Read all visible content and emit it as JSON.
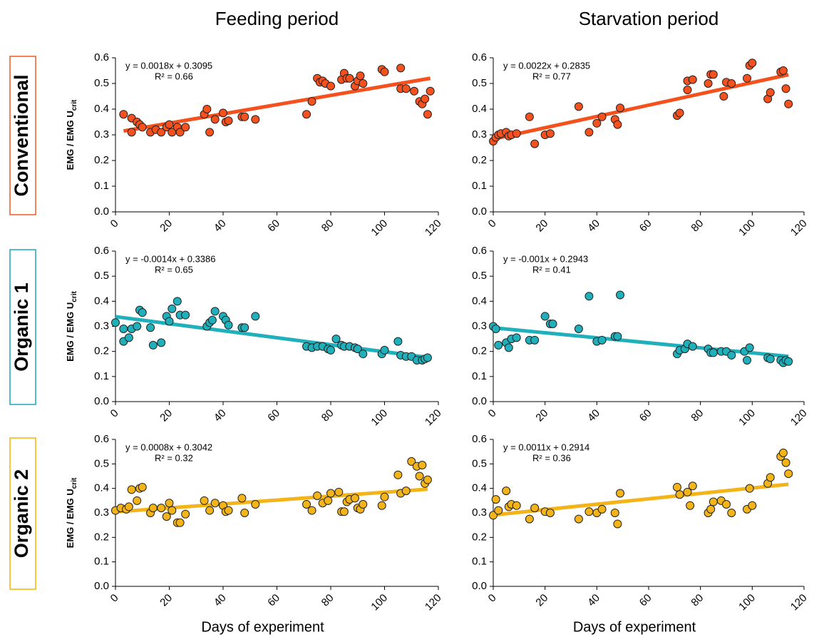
{
  "column_titles": [
    "Feeding period",
    "Starvation period"
  ],
  "row_labels": [
    {
      "text": "Conventional",
      "color": "#f15a22"
    },
    {
      "text": "Organic 1",
      "color": "#1aa9b8"
    },
    {
      "text": "Organic 2",
      "color": "#f5b400"
    }
  ],
  "chart_data": [
    {
      "type": "scatter",
      "color": "#f4511e",
      "line_color": "#f4511e",
      "ylabel": {
        "text": "EMG / EMG U",
        "subscript": "crit"
      },
      "x": [
        3,
        6,
        6,
        8,
        9,
        10,
        13,
        15,
        17,
        19,
        20,
        21,
        23,
        24,
        26,
        33,
        34,
        35,
        37,
        40,
        41,
        42,
        47,
        48,
        52,
        71,
        73,
        75,
        76,
        77,
        78,
        80,
        84,
        85,
        86,
        87,
        89,
        90,
        91,
        92,
        99,
        100,
        106,
        106,
        108,
        111,
        113,
        114,
        115,
        116,
        117
      ],
      "values": [
        0.38,
        0.31,
        0.365,
        0.35,
        0.34,
        0.33,
        0.31,
        0.32,
        0.31,
        0.33,
        0.34,
        0.31,
        0.33,
        0.31,
        0.33,
        0.38,
        0.4,
        0.31,
        0.36,
        0.385,
        0.35,
        0.355,
        0.37,
        0.37,
        0.36,
        0.38,
        0.43,
        0.52,
        0.505,
        0.51,
        0.5,
        0.49,
        0.515,
        0.54,
        0.52,
        0.52,
        0.49,
        0.51,
        0.53,
        0.5,
        0.555,
        0.545,
        0.48,
        0.56,
        0.48,
        0.47,
        0.43,
        0.42,
        0.44,
        0.38,
        0.47
      ],
      "fit": {
        "slope": 0.0018,
        "intercept": 0.3095,
        "label": "y = 0.0018x + 0.3095",
        "r2_label": "R² = 0.66"
      },
      "xlim": [
        0,
        120
      ],
      "xticks": [
        0,
        20,
        40,
        60,
        80,
        100,
        120
      ],
      "ylim": [
        0,
        0.6
      ],
      "yticks": [
        {
          "value": 0,
          "label": "0.0"
        },
        0.1,
        0.2,
        0.3,
        0.4,
        0.5,
        0.6
      ]
    },
    {
      "type": "scatter",
      "color": "#f4511e",
      "line_color": "#f4511e",
      "x": [
        0,
        1,
        2,
        3,
        5,
        6,
        7,
        9,
        14,
        16,
        20,
        22,
        33,
        37,
        40,
        42,
        47,
        48,
        49,
        71,
        72,
        75,
        75,
        77,
        83,
        84,
        85,
        89,
        90,
        92,
        98,
        99,
        100,
        106,
        107,
        111,
        112,
        113,
        114
      ],
      "values": [
        0.275,
        0.29,
        0.3,
        0.305,
        0.31,
        0.295,
        0.3,
        0.305,
        0.37,
        0.265,
        0.3,
        0.305,
        0.41,
        0.31,
        0.345,
        0.37,
        0.36,
        0.34,
        0.405,
        0.375,
        0.385,
        0.51,
        0.475,
        0.515,
        0.5,
        0.535,
        0.535,
        0.45,
        0.505,
        0.5,
        0.52,
        0.57,
        0.58,
        0.44,
        0.465,
        0.545,
        0.55,
        0.48,
        0.42
      ],
      "fit": {
        "slope": 0.0022,
        "intercept": 0.2835,
        "label": "y = 0.0022x + 0.2835",
        "r2_label": "R² = 0.77"
      },
      "xlim": [
        0,
        120
      ],
      "xticks": [
        0,
        20,
        40,
        60,
        80,
        100,
        120
      ],
      "ylim": [
        0,
        0.6
      ],
      "yticks": [
        {
          "value": 0,
          "label": "0.0"
        },
        0.1,
        0.2,
        0.3,
        0.4,
        0.5,
        0.6
      ]
    },
    {
      "type": "scatter",
      "color": "#1fb0bb",
      "line_color": "#1fb0bb",
      "ylabel": {
        "text": "EMG / EMG U",
        "subscript": "crit"
      },
      "x": [
        0,
        3,
        3,
        5,
        6,
        8,
        9,
        10,
        13,
        14,
        17,
        19,
        20,
        21,
        23,
        24,
        26,
        34,
        35,
        36,
        37,
        40,
        41,
        42,
        47,
        48,
        52,
        71,
        73,
        75,
        77,
        79,
        80,
        82,
        84,
        85,
        87,
        89,
        90,
        92,
        99,
        100,
        105,
        106,
        108,
        110,
        112,
        114,
        115,
        116
      ],
      "values": [
        0.315,
        0.24,
        0.29,
        0.255,
        0.29,
        0.3,
        0.365,
        0.355,
        0.295,
        0.225,
        0.235,
        0.34,
        0.32,
        0.37,
        0.4,
        0.345,
        0.345,
        0.3,
        0.315,
        0.325,
        0.36,
        0.34,
        0.325,
        0.305,
        0.295,
        0.295,
        0.34,
        0.22,
        0.215,
        0.22,
        0.22,
        0.21,
        0.205,
        0.25,
        0.225,
        0.22,
        0.22,
        0.215,
        0.21,
        0.19,
        0.19,
        0.205,
        0.24,
        0.185,
        0.18,
        0.18,
        0.165,
        0.165,
        0.17,
        0.175
      ],
      "fit": {
        "slope": -0.0014,
        "intercept": 0.3386,
        "label": "y = -0.0014x + 0.3386",
        "r2_label": "R² = 0.65"
      },
      "xlim": [
        0,
        120
      ],
      "xticks": [
        0,
        20,
        40,
        60,
        80,
        100,
        120
      ],
      "ylim": [
        0,
        0.6
      ],
      "yticks": [
        {
          "value": 0,
          "label": "0.0"
        },
        0.1,
        0.2,
        0.3,
        0.4,
        0.5,
        0.6
      ]
    },
    {
      "type": "scatter",
      "color": "#1fb0bb",
      "line_color": "#1fb0bb",
      "x": [
        0,
        1,
        2,
        5,
        6,
        7,
        9,
        14,
        16,
        20,
        22,
        23,
        33,
        37,
        40,
        42,
        47,
        48,
        49,
        71,
        72,
        74,
        75,
        77,
        83,
        84,
        85,
        88,
        90,
        92,
        97,
        98,
        99,
        106,
        107,
        111,
        112,
        113,
        114
      ],
      "values": [
        0.3,
        0.29,
        0.225,
        0.235,
        0.215,
        0.25,
        0.255,
        0.245,
        0.245,
        0.34,
        0.31,
        0.31,
        0.29,
        0.42,
        0.24,
        0.245,
        0.26,
        0.26,
        0.425,
        0.19,
        0.205,
        0.21,
        0.23,
        0.22,
        0.21,
        0.195,
        0.195,
        0.2,
        0.2,
        0.185,
        0.2,
        0.165,
        0.215,
        0.175,
        0.17,
        0.165,
        0.155,
        0.165,
        0.16
      ],
      "fit": {
        "slope": -0.001,
        "intercept": 0.2943,
        "label": "y = -0.001x + 0.2943",
        "r2_label": "R² = 0.41"
      },
      "xlim": [
        0,
        120
      ],
      "xticks": [
        0,
        20,
        40,
        60,
        80,
        100,
        120
      ],
      "ylim": [
        0,
        0.6
      ],
      "yticks": [
        {
          "value": 0,
          "label": "0.0"
        },
        0.1,
        0.2,
        0.3,
        0.4,
        0.5,
        0.6
      ]
    },
    {
      "type": "scatter",
      "color": "#f2b418",
      "line_color": "#f2b418",
      "ylabel": {
        "text": "EMG / EMG U",
        "subscript": "crit"
      },
      "xlabel": "Days of experiment",
      "x": [
        0,
        2,
        4,
        5,
        6,
        8,
        9,
        10,
        13,
        14,
        17,
        19,
        20,
        21,
        23,
        24,
        26,
        33,
        35,
        37,
        40,
        41,
        42,
        47,
        48,
        52,
        71,
        73,
        75,
        77,
        79,
        80,
        83,
        84,
        85,
        86,
        87,
        89,
        90,
        91,
        92,
        99,
        100,
        105,
        106,
        108,
        110,
        112,
        113,
        114,
        115,
        116
      ],
      "values": [
        0.31,
        0.32,
        0.315,
        0.325,
        0.395,
        0.35,
        0.4,
        0.405,
        0.3,
        0.32,
        0.32,
        0.285,
        0.34,
        0.31,
        0.26,
        0.26,
        0.295,
        0.35,
        0.31,
        0.34,
        0.33,
        0.305,
        0.31,
        0.36,
        0.3,
        0.335,
        0.335,
        0.31,
        0.37,
        0.34,
        0.35,
        0.38,
        0.385,
        0.305,
        0.305,
        0.345,
        0.355,
        0.36,
        0.32,
        0.315,
        0.335,
        0.33,
        0.365,
        0.455,
        0.38,
        0.39,
        0.51,
        0.49,
        0.45,
        0.495,
        0.42,
        0.435
      ],
      "fit": {
        "slope": 0.0008,
        "intercept": 0.3042,
        "label": "y = 0.0008x + 0.3042",
        "r2_label": "R² = 0.32"
      },
      "xlim": [
        0,
        120
      ],
      "xticks": [
        0,
        20,
        40,
        60,
        80,
        100,
        120
      ],
      "ylim": [
        0,
        0.6
      ],
      "yticks": [
        {
          "value": 0,
          "label": "0.0"
        },
        0.1,
        0.2,
        0.3,
        0.4,
        0.5,
        0.6
      ]
    },
    {
      "type": "scatter",
      "color": "#f2b418",
      "line_color": "#f2b418",
      "xlabel": "Days of experiment",
      "x": [
        0,
        1,
        2,
        5,
        6,
        7,
        9,
        14,
        16,
        20,
        22,
        33,
        37,
        40,
        42,
        47,
        48,
        49,
        71,
        72,
        75,
        76,
        77,
        83,
        84,
        85,
        88,
        90,
        92,
        98,
        99,
        100,
        106,
        107,
        111,
        112,
        113,
        114
      ],
      "values": [
        0.29,
        0.355,
        0.31,
        0.39,
        0.325,
        0.335,
        0.33,
        0.275,
        0.32,
        0.305,
        0.3,
        0.275,
        0.305,
        0.3,
        0.315,
        0.3,
        0.255,
        0.38,
        0.405,
        0.375,
        0.385,
        0.33,
        0.41,
        0.3,
        0.315,
        0.345,
        0.35,
        0.335,
        0.3,
        0.315,
        0.4,
        0.33,
        0.42,
        0.445,
        0.53,
        0.545,
        0.505,
        0.46
      ],
      "fit": {
        "slope": 0.0011,
        "intercept": 0.2914,
        "label": "y = 0.0011x + 0.2914",
        "r2_label": "R² = 0.36"
      },
      "xlim": [
        0,
        120
      ],
      "xticks": [
        0,
        20,
        40,
        60,
        80,
        100,
        120
      ],
      "ylim": [
        0,
        0.6
      ],
      "yticks": [
        {
          "value": 0,
          "label": "0.0"
        },
        0.1,
        0.2,
        0.3,
        0.4,
        0.5,
        0.6
      ]
    }
  ]
}
